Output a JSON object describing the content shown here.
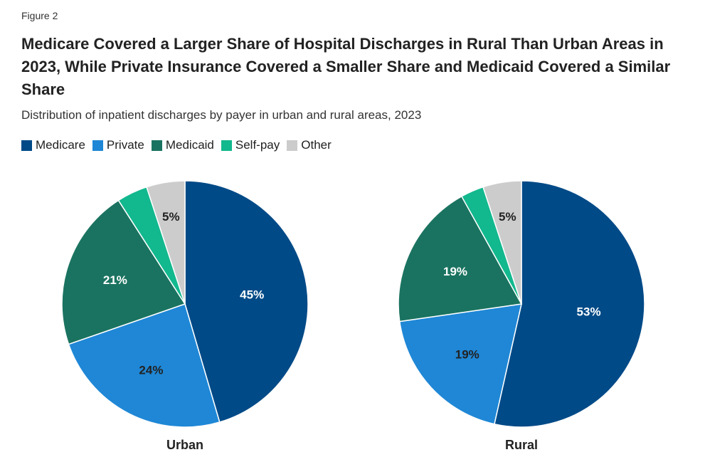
{
  "figure_label": "Figure 2",
  "title": "Medicare Covered a Larger Share of Hospital Discharges in Rural Than Urban Areas in 2023, While Private Insurance Covered a Smaller Share and Medicaid Covered a Similar Share",
  "subtitle": "Distribution of inpatient discharges by payer in urban and rural areas, 2023",
  "legend": [
    {
      "label": "Medicare",
      "color": "#004a87"
    },
    {
      "label": "Private",
      "color": "#1f87d6"
    },
    {
      "label": "Medicaid",
      "color": "#1a7360"
    },
    {
      "label": "Self-pay",
      "color": "#12b88e"
    },
    {
      "label": "Other",
      "color": "#cccccc"
    }
  ],
  "chart_data": [
    {
      "type": "pie",
      "title": "Urban",
      "categories": [
        "Medicare",
        "Private",
        "Medicaid",
        "Self-pay",
        "Other"
      ],
      "values": [
        45,
        24,
        21,
        4,
        5
      ],
      "labels": [
        "45%",
        "24%",
        "21%",
        "",
        "5%"
      ],
      "colors": [
        "#004a87",
        "#1f87d6",
        "#1a7360",
        "#12b88e",
        "#cccccc"
      ],
      "label_colors": [
        "#ffffff",
        "#222222",
        "#ffffff",
        "#222222",
        "#222222"
      ]
    },
    {
      "type": "pie",
      "title": "Rural",
      "categories": [
        "Medicare",
        "Private",
        "Medicaid",
        "Self-pay",
        "Other"
      ],
      "values": [
        53,
        19,
        19,
        3,
        5
      ],
      "labels": [
        "53%",
        "19%",
        "19%",
        "",
        "5%"
      ],
      "colors": [
        "#004a87",
        "#1f87d6",
        "#1a7360",
        "#12b88e",
        "#cccccc"
      ],
      "label_colors": [
        "#ffffff",
        "#222222",
        "#ffffff",
        "#222222",
        "#222222"
      ]
    }
  ]
}
